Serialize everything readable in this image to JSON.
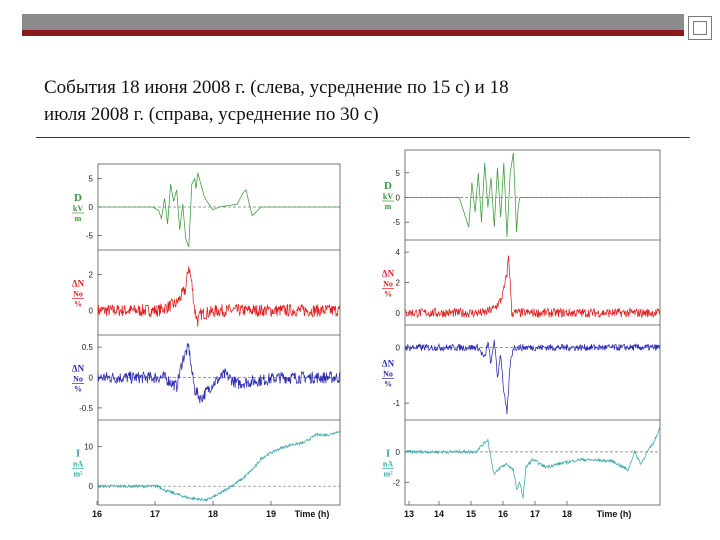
{
  "slide": {
    "title_line1": "События 18 июня 2008 г. (слева, усреднение по 15 с) и 18",
    "title_line2": "июля 2008 г. (справа, усреднение по 30 с)"
  },
  "chart_data": [
    {
      "type": "line",
      "xlabel": "Time (h)",
      "xlim": [
        16,
        20
      ],
      "xticks": [
        "16",
        "17",
        "18",
        "19"
      ],
      "panels": [
        {
          "label": "D",
          "units": [
            "kV",
            "m"
          ],
          "color": "#3a9a3a",
          "yticks": [
            "5",
            "0",
            "-5"
          ],
          "ylim": [
            -7,
            7
          ],
          "dashed_zero": true,
          "points": [
            [
              16.0,
              0
            ],
            [
              16.9,
              0
            ],
            [
              17.0,
              -0.6
            ],
            [
              17.05,
              -2
            ],
            [
              17.1,
              1.5
            ],
            [
              17.15,
              -3
            ],
            [
              17.2,
              4
            ],
            [
              17.25,
              1
            ],
            [
              17.3,
              3
            ],
            [
              17.35,
              -4
            ],
            [
              17.4,
              0.5
            ],
            [
              17.45,
              -5.5
            ],
            [
              17.5,
              -7
            ],
            [
              17.55,
              4
            ],
            [
              17.6,
              5
            ],
            [
              17.62,
              3
            ],
            [
              17.65,
              6
            ],
            [
              17.7,
              4
            ],
            [
              17.75,
              2
            ],
            [
              17.8,
              1
            ],
            [
              17.9,
              -0.5
            ],
            [
              18.0,
              0
            ],
            [
              18.3,
              0.5
            ],
            [
              18.4,
              2.5
            ],
            [
              18.45,
              3
            ],
            [
              18.5,
              0.5
            ],
            [
              18.55,
              -1.5
            ],
            [
              18.6,
              -1
            ],
            [
              18.7,
              0
            ],
            [
              20.0,
              0
            ]
          ]
        },
        {
          "label": "ΔN",
          "units": [
            "No",
            "%"
          ],
          "color": "#e02020",
          "yticks": [
            "2",
            "0"
          ],
          "ylim": [
            -1.2,
            3.2
          ],
          "dashed_zero": false,
          "noise": 0.35,
          "points": [
            [
              16.0,
              0
            ],
            [
              17.0,
              0
            ],
            [
              17.3,
              0.4
            ],
            [
              17.45,
              1.2
            ],
            [
              17.5,
              2.5
            ],
            [
              17.55,
              1.5
            ],
            [
              17.6,
              0
            ],
            [
              17.65,
              -0.6
            ],
            [
              17.7,
              -0.2
            ],
            [
              18.0,
              0
            ],
            [
              20.0,
              0
            ]
          ]
        },
        {
          "label": "ΔN",
          "units": [
            "No",
            "%"
          ],
          "color": "#2a2ab0",
          "yticks": [
            "0.5",
            "0",
            "-0.5"
          ],
          "ylim": [
            -0.65,
            0.65
          ],
          "dashed_zero": true,
          "noise": 0.1,
          "points": [
            [
              16.0,
              0
            ],
            [
              17.1,
              0
            ],
            [
              17.3,
              -0.15
            ],
            [
              17.4,
              0.3
            ],
            [
              17.5,
              0.5
            ],
            [
              17.55,
              0.1
            ],
            [
              17.6,
              -0.2
            ],
            [
              17.7,
              -0.35
            ],
            [
              17.9,
              -0.1
            ],
            [
              18.1,
              0.05
            ],
            [
              18.3,
              -0.1
            ],
            [
              19.0,
              0
            ],
            [
              20.0,
              0
            ]
          ]
        },
        {
          "label": "I",
          "units": [
            "nA",
            "m²"
          ],
          "color": "#40a8a8",
          "yticks": [
            "10",
            "0"
          ],
          "ylim": [
            -4,
            16
          ],
          "dashed_zero": true,
          "noise": 0.35,
          "points": [
            [
              16.0,
              0
            ],
            [
              17.0,
              0
            ],
            [
              17.1,
              -1
            ],
            [
              17.3,
              -2
            ],
            [
              17.5,
              -3
            ],
            [
              17.8,
              -3.5
            ],
            [
              18.0,
              -2
            ],
            [
              18.2,
              0
            ],
            [
              18.4,
              2
            ],
            [
              18.6,
              5
            ],
            [
              18.7,
              7
            ],
            [
              18.8,
              8
            ],
            [
              19.0,
              9.5
            ],
            [
              19.2,
              10.5
            ],
            [
              19.4,
              11
            ],
            [
              19.6,
              13
            ],
            [
              19.8,
              13
            ],
            [
              20.0,
              14
            ]
          ]
        }
      ]
    },
    {
      "type": "line",
      "xlabel": "Time (h)",
      "xlim": [
        13,
        21
      ],
      "xticks": [
        "13",
        "14",
        "15",
        "16",
        "17",
        "18"
      ],
      "panels": [
        {
          "label": "D",
          "units": [
            "kV",
            "m"
          ],
          "color": "#3a9a3a",
          "yticks": [
            "5",
            "0",
            "-5"
          ],
          "ylim": [
            -8,
            9
          ],
          "dashed_zero": true,
          "points": [
            [
              13.0,
              0
            ],
            [
              14.7,
              0
            ],
            [
              14.8,
              -2
            ],
            [
              14.9,
              -4
            ],
            [
              15.0,
              -6
            ],
            [
              15.1,
              3
            ],
            [
              15.2,
              -3
            ],
            [
              15.3,
              5
            ],
            [
              15.4,
              -5
            ],
            [
              15.5,
              7
            ],
            [
              15.6,
              -2
            ],
            [
              15.7,
              4
            ],
            [
              15.8,
              -6
            ],
            [
              15.9,
              6
            ],
            [
              16.0,
              -4
            ],
            [
              16.1,
              7
            ],
            [
              16.2,
              -8
            ],
            [
              16.3,
              5
            ],
            [
              16.4,
              9
            ],
            [
              16.5,
              -7
            ],
            [
              16.55,
              -2
            ],
            [
              16.6,
              0
            ],
            [
              21.0,
              0
            ]
          ]
        },
        {
          "label": "ΔN",
          "units": [
            "No",
            "%"
          ],
          "color": "#e02020",
          "yticks": [
            "4",
            "2",
            "0"
          ],
          "ylim": [
            -0.6,
            4.6
          ],
          "dashed_zero": false,
          "noise": 0.3,
          "points": [
            [
              13.0,
              0
            ],
            [
              15.5,
              0
            ],
            [
              15.8,
              0.3
            ],
            [
              16.0,
              0.8
            ],
            [
              16.1,
              1.5
            ],
            [
              16.2,
              2.6
            ],
            [
              16.25,
              3.8
            ],
            [
              16.3,
              2
            ],
            [
              16.35,
              0
            ],
            [
              21.0,
              0
            ]
          ]
        },
        {
          "label": "ΔN",
          "units": [
            "No",
            "%"
          ],
          "color": "#2a2ab0",
          "yticks": [
            "0",
            "-1"
          ],
          "ylim": [
            -1.25,
            0.35
          ],
          "dashed_zero": true,
          "noise": 0.06,
          "points": [
            [
              13.0,
              0
            ],
            [
              15.3,
              0
            ],
            [
              15.5,
              -0.2
            ],
            [
              15.6,
              0.1
            ],
            [
              15.7,
              -0.3
            ],
            [
              15.8,
              0.15
            ],
            [
              15.9,
              -0.55
            ],
            [
              16.0,
              -0.1
            ],
            [
              16.1,
              -0.8
            ],
            [
              16.2,
              -1.2
            ],
            [
              16.3,
              -0.3
            ],
            [
              16.4,
              0
            ],
            [
              21.0,
              0
            ]
          ]
        },
        {
          "label": "I",
          "units": [
            "nA",
            "m²"
          ],
          "color": "#40a8a8",
          "yticks": [
            "0",
            "-2"
          ],
          "ylim": [
            -3.3,
            1.9
          ],
          "dashed_zero": true,
          "noise": 0.1,
          "points": [
            [
              13.0,
              0
            ],
            [
              15.2,
              0
            ],
            [
              15.4,
              0.4
            ],
            [
              15.6,
              0.8
            ],
            [
              15.7,
              -0.5
            ],
            [
              15.8,
              -1.5
            ],
            [
              16.0,
              -1
            ],
            [
              16.2,
              -0.8
            ],
            [
              16.4,
              -1.2
            ],
            [
              16.5,
              -2.5
            ],
            [
              16.6,
              -2
            ],
            [
              16.7,
              -3
            ],
            [
              16.8,
              -1
            ],
            [
              17.0,
              -0.5
            ],
            [
              17.4,
              -1
            ],
            [
              17.8,
              -0.8
            ],
            [
              18.5,
              -0.5
            ],
            [
              19.5,
              -0.6
            ],
            [
              20.0,
              -1.2
            ],
            [
              20.2,
              0
            ],
            [
              20.4,
              -0.8
            ],
            [
              20.6,
              0
            ],
            [
              20.8,
              0.6
            ],
            [
              21.0,
              1.6
            ]
          ]
        }
      ]
    }
  ]
}
